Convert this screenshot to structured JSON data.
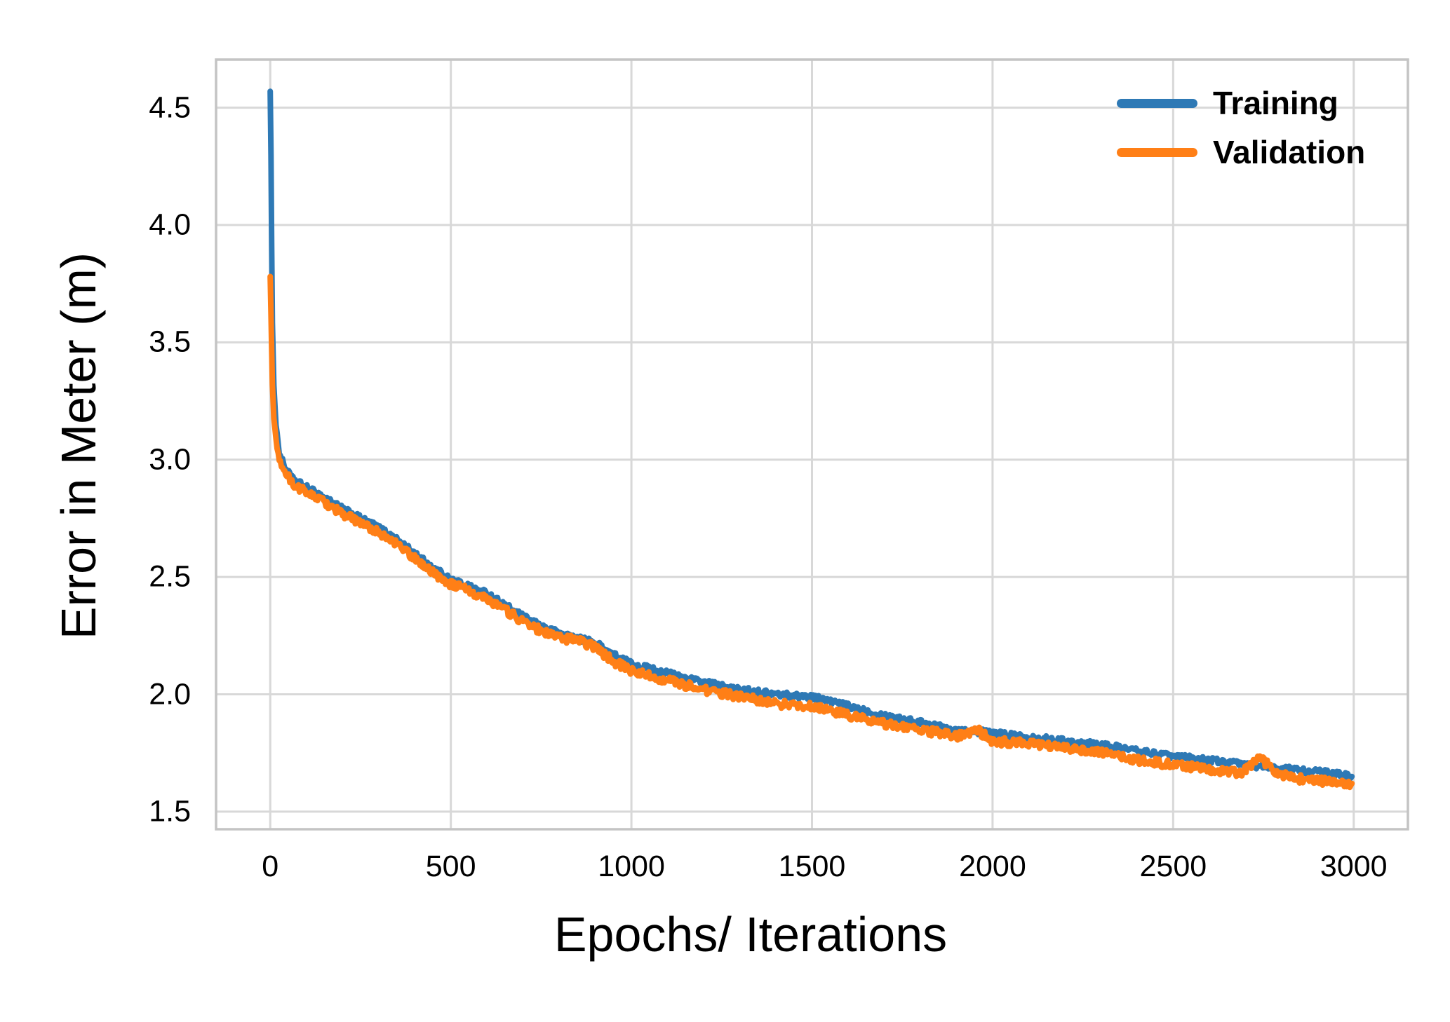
{
  "chart_data": {
    "type": "line",
    "title": "",
    "xlabel": "Epochs/ Iterations",
    "ylabel": "Error in Meter (m)",
    "x_ticks": [
      0,
      500,
      1000,
      1500,
      2000,
      2500,
      3000
    ],
    "y_ticks": [
      1.5,
      2.0,
      2.5,
      3.0,
      3.5,
      4.0,
      4.5
    ],
    "xlim": [
      -150,
      3150
    ],
    "ylim": [
      1.425,
      4.705
    ],
    "grid": true,
    "legend_position": "upper right",
    "grid_color": "#d8d8d8",
    "spine_color": "#c4c4c4",
    "background": "#ffffff",
    "series": [
      {
        "name": "Training",
        "color": "#2e79b5",
        "stroke_width": 8,
        "noise": 0.013,
        "points": [
          [
            0,
            4.57
          ],
          [
            2,
            4.3
          ],
          [
            4,
            3.9
          ],
          [
            6,
            3.58
          ],
          [
            10,
            3.32
          ],
          [
            16,
            3.15
          ],
          [
            25,
            3.03
          ],
          [
            40,
            2.97
          ],
          [
            60,
            2.92
          ],
          [
            90,
            2.89
          ],
          [
            125,
            2.86
          ],
          [
            160,
            2.83
          ],
          [
            200,
            2.79
          ],
          [
            250,
            2.75
          ],
          [
            300,
            2.71
          ],
          [
            350,
            2.66
          ],
          [
            400,
            2.6
          ],
          [
            450,
            2.54
          ],
          [
            500,
            2.49
          ],
          [
            550,
            2.46
          ],
          [
            600,
            2.43
          ],
          [
            650,
            2.38
          ],
          [
            700,
            2.33
          ],
          [
            750,
            2.29
          ],
          [
            800,
            2.26
          ],
          [
            850,
            2.24
          ],
          [
            900,
            2.22
          ],
          [
            950,
            2.17
          ],
          [
            1000,
            2.13
          ],
          [
            1100,
            2.09
          ],
          [
            1200,
            2.05
          ],
          [
            1300,
            2.02
          ],
          [
            1400,
            2.0
          ],
          [
            1500,
            1.99
          ],
          [
            1600,
            1.95
          ],
          [
            1700,
            1.91
          ],
          [
            1800,
            1.88
          ],
          [
            1900,
            1.85
          ],
          [
            2000,
            1.835
          ],
          [
            2100,
            1.82
          ],
          [
            2200,
            1.8
          ],
          [
            2300,
            1.785
          ],
          [
            2400,
            1.76
          ],
          [
            2500,
            1.735
          ],
          [
            2600,
            1.72
          ],
          [
            2700,
            1.7
          ],
          [
            2800,
            1.685
          ],
          [
            2900,
            1.67
          ],
          [
            2995,
            1.65
          ]
        ]
      },
      {
        "name": "Validation",
        "color": "#ff7f16",
        "stroke_width": 8,
        "noise": 0.018,
        "points": [
          [
            0,
            3.78
          ],
          [
            2,
            3.62
          ],
          [
            4,
            3.46
          ],
          [
            6,
            3.32
          ],
          [
            10,
            3.18
          ],
          [
            16,
            3.08
          ],
          [
            25,
            3.0
          ],
          [
            40,
            2.95
          ],
          [
            60,
            2.9
          ],
          [
            90,
            2.87
          ],
          [
            125,
            2.84
          ],
          [
            160,
            2.81
          ],
          [
            200,
            2.77
          ],
          [
            250,
            2.73
          ],
          [
            300,
            2.69
          ],
          [
            350,
            2.64
          ],
          [
            400,
            2.58
          ],
          [
            450,
            2.52
          ],
          [
            500,
            2.47
          ],
          [
            550,
            2.44
          ],
          [
            600,
            2.41
          ],
          [
            650,
            2.36
          ],
          [
            700,
            2.31
          ],
          [
            750,
            2.27
          ],
          [
            800,
            2.24
          ],
          [
            850,
            2.23
          ],
          [
            900,
            2.2
          ],
          [
            950,
            2.14
          ],
          [
            1000,
            2.1
          ],
          [
            1100,
            2.06
          ],
          [
            1200,
            2.02
          ],
          [
            1300,
            1.99
          ],
          [
            1400,
            1.96
          ],
          [
            1500,
            1.95
          ],
          [
            1600,
            1.91
          ],
          [
            1700,
            1.875
          ],
          [
            1800,
            1.85
          ],
          [
            1900,
            1.82
          ],
          [
            1960,
            1.845
          ],
          [
            2000,
            1.8
          ],
          [
            2100,
            1.79
          ],
          [
            2200,
            1.77
          ],
          [
            2300,
            1.75
          ],
          [
            2400,
            1.72
          ],
          [
            2500,
            1.7
          ],
          [
            2600,
            1.68
          ],
          [
            2690,
            1.665
          ],
          [
            2740,
            1.73
          ],
          [
            2790,
            1.66
          ],
          [
            2850,
            1.64
          ],
          [
            2950,
            1.625
          ],
          [
            2995,
            1.62
          ]
        ]
      }
    ]
  }
}
